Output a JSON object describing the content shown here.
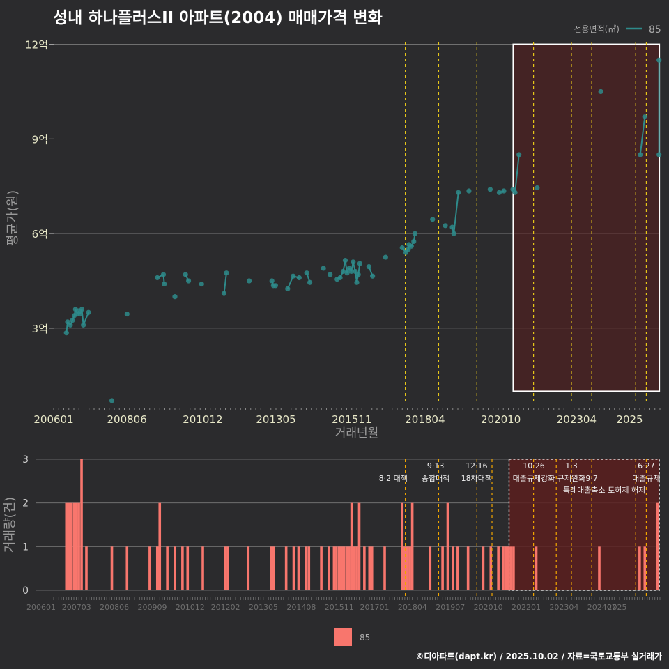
{
  "title": "성내 하나플러스II 아파트(2004) 매매가격 변화",
  "footer": "©디아파트(dapt.kr) / 2025.10.02 / 자료=국토교통부 실거래가",
  "colors": {
    "background": "#2b2b2d",
    "line": "#2e8b8b",
    "bar": "#f8766d",
    "policy_line": "#e6c619",
    "highlight_fill": "#5a1e1e",
    "grid": "#7a7a7a"
  },
  "chart_data": [
    {
      "type": "line",
      "title": "성내 하나플러스II 아파트(2004) 매매가격 변화",
      "xlabel": "거래년월",
      "ylabel": "평균가(원)",
      "x_ticks": [
        "200601",
        "200806",
        "201012",
        "201305",
        "201511",
        "201804",
        "202010",
        "202304",
        "2025"
      ],
      "y_ticks": [
        {
          "value": 30000,
          "label": "3억"
        },
        {
          "value": 60000,
          "label": "6억"
        },
        {
          "value": 90000,
          "label": "9억"
        },
        {
          "value": 120000,
          "label": "12억"
        }
      ],
      "ylim": [
        7000,
        123000
      ],
      "legend_title": "전용면적(㎡)",
      "legend_entries": [
        "85"
      ],
      "series": [
        {
          "name": "85",
          "unit": "만원",
          "points": [
            {
              "t": 2006.42,
              "v": 28500
            },
            {
              "t": 2006.46,
              "v": 32000
            },
            {
              "t": 2006.55,
              "v": 31000
            },
            {
              "t": 2006.62,
              "v": 32500
            },
            {
              "t": 2006.68,
              "v": 34000
            },
            {
              "t": 2006.72,
              "v": 36000
            },
            {
              "t": 2006.78,
              "v": 34500
            },
            {
              "t": 2006.83,
              "v": 35500
            },
            {
              "t": 2006.88,
              "v": 34500
            },
            {
              "t": 2006.93,
              "v": 36000
            },
            {
              "t": 2006.98,
              "v": 31000
            },
            {
              "t": 2007.15,
              "v": 35000
            },
            {
              "t": 2007.92,
              "v": 7000
            },
            {
              "t": 2008.42,
              "v": 34500
            },
            {
              "t": 2009.42,
              "v": 46000
            },
            {
              "t": 2009.62,
              "v": 47000
            },
            {
              "t": 2009.65,
              "v": 44000
            },
            {
              "t": 2010.0,
              "v": 40000
            },
            {
              "t": 2010.35,
              "v": 47000
            },
            {
              "t": 2010.45,
              "v": 45000
            },
            {
              "t": 2010.88,
              "v": 44000
            },
            {
              "t": 2011.62,
              "v": 41000
            },
            {
              "t": 2011.7,
              "v": 47500
            },
            {
              "t": 2012.45,
              "v": 45000
            },
            {
              "t": 2013.2,
              "v": 45000
            },
            {
              "t": 2013.25,
              "v": 43500
            },
            {
              "t": 2013.32,
              "v": 43500
            },
            {
              "t": 2013.72,
              "v": 42500
            },
            {
              "t": 2013.9,
              "v": 46500
            },
            {
              "t": 2014.1,
              "v": 46000
            },
            {
              "t": 2014.35,
              "v": 47500
            },
            {
              "t": 2014.45,
              "v": 44500
            },
            {
              "t": 2014.9,
              "v": 49000
            },
            {
              "t": 2015.12,
              "v": 47000
            },
            {
              "t": 2015.35,
              "v": 45500
            },
            {
              "t": 2015.45,
              "v": 46000
            },
            {
              "t": 2015.55,
              "v": 48000
            },
            {
              "t": 2015.62,
              "v": 51500
            },
            {
              "t": 2015.68,
              "v": 47500
            },
            {
              "t": 2015.75,
              "v": 49000
            },
            {
              "t": 2015.82,
              "v": 48000
            },
            {
              "t": 2015.88,
              "v": 51000
            },
            {
              "t": 2015.95,
              "v": 48000
            },
            {
              "t": 2016.0,
              "v": 44500
            },
            {
              "t": 2016.05,
              "v": 47000
            },
            {
              "t": 2016.1,
              "v": 50500
            },
            {
              "t": 2016.4,
              "v": 49500
            },
            {
              "t": 2016.52,
              "v": 46500
            },
            {
              "t": 2016.95,
              "v": 52500
            },
            {
              "t": 2017.5,
              "v": 55500
            },
            {
              "t": 2017.62,
              "v": 54000
            },
            {
              "t": 2017.7,
              "v": 55000
            },
            {
              "t": 2017.72,
              "v": 56500
            },
            {
              "t": 2017.8,
              "v": 56000
            },
            {
              "t": 2017.88,
              "v": 57500
            },
            {
              "t": 2017.92,
              "v": 60000
            },
            {
              "t": 2018.5,
              "v": 64500
            },
            {
              "t": 2018.92,
              "v": 62500
            },
            {
              "t": 2019.15,
              "v": 62000
            },
            {
              "t": 2019.2,
              "v": 60000
            },
            {
              "t": 2019.35,
              "v": 73000
            },
            {
              "t": 2019.7,
              "v": 73500
            },
            {
              "t": 2020.4,
              "v": 74000
            },
            {
              "t": 2020.7,
              "v": 73000
            },
            {
              "t": 2020.85,
              "v": 73500
            },
            {
              "t": 2021.15,
              "v": 74000
            },
            {
              "t": 2021.22,
              "v": 73000
            },
            {
              "t": 2021.35,
              "v": 85000
            },
            {
              "t": 2021.95,
              "v": 74500
            },
            {
              "t": 2024.05,
              "v": 105000
            },
            {
              "t": 2025.35,
              "v": 85000
            },
            {
              "t": 2025.5,
              "v": 97000
            },
            {
              "t": 2025.97,
              "v": 85000
            },
            {
              "t": 2025.97,
              "v": 115000
            }
          ]
        }
      ],
      "policy_lines": [
        2017.6,
        2018.7,
        2019.96,
        2021.83,
        2023.08,
        2023.75,
        2025.2,
        2025.55
      ],
      "highlight_range": {
        "x": [
          2021.16,
          2025.98
        ],
        "y": [
          10000,
          120000
        ]
      }
    },
    {
      "type": "bar",
      "xlabel": "",
      "ylabel": "거래량(건)",
      "x_ticks": [
        "200601",
        "200703",
        "200806",
        "200909",
        "201012",
        "201202",
        "201305",
        "201408",
        "201511",
        "201701",
        "201804",
        "201907",
        "202010",
        "202201",
        "202304",
        "202407",
        "2025"
      ],
      "y_ticks": [
        "0",
        "1",
        "2",
        "3"
      ],
      "ylim": [
        0,
        3
      ],
      "legend_entries": [
        "85"
      ],
      "bars": [
        {
          "t": 2006.42,
          "v": 2
        },
        {
          "t": 2006.5,
          "v": 2
        },
        {
          "t": 2006.58,
          "v": 2
        },
        {
          "t": 2006.67,
          "v": 2
        },
        {
          "t": 2006.75,
          "v": 2
        },
        {
          "t": 2006.83,
          "v": 2
        },
        {
          "t": 2006.92,
          "v": 3
        },
        {
          "t": 2007.08,
          "v": 1
        },
        {
          "t": 2007.92,
          "v": 1
        },
        {
          "t": 2008.42,
          "v": 1
        },
        {
          "t": 2009.17,
          "v": 1
        },
        {
          "t": 2009.42,
          "v": 1
        },
        {
          "t": 2009.5,
          "v": 2
        },
        {
          "t": 2009.75,
          "v": 1
        },
        {
          "t": 2010.0,
          "v": 1
        },
        {
          "t": 2010.25,
          "v": 1
        },
        {
          "t": 2010.42,
          "v": 1
        },
        {
          "t": 2010.92,
          "v": 1
        },
        {
          "t": 2011.67,
          "v": 1
        },
        {
          "t": 2011.75,
          "v": 1
        },
        {
          "t": 2012.42,
          "v": 1
        },
        {
          "t": 2013.17,
          "v": 1
        },
        {
          "t": 2013.25,
          "v": 1
        },
        {
          "t": 2013.67,
          "v": 1
        },
        {
          "t": 2013.92,
          "v": 1
        },
        {
          "t": 2014.08,
          "v": 1
        },
        {
          "t": 2014.33,
          "v": 1
        },
        {
          "t": 2014.42,
          "v": 1
        },
        {
          "t": 2014.83,
          "v": 1
        },
        {
          "t": 2015.08,
          "v": 1
        },
        {
          "t": 2015.25,
          "v": 1
        },
        {
          "t": 2015.33,
          "v": 1
        },
        {
          "t": 2015.42,
          "v": 1
        },
        {
          "t": 2015.5,
          "v": 1
        },
        {
          "t": 2015.58,
          "v": 1
        },
        {
          "t": 2015.67,
          "v": 1
        },
        {
          "t": 2015.75,
          "v": 1
        },
        {
          "t": 2015.83,
          "v": 2
        },
        {
          "t": 2015.92,
          "v": 1
        },
        {
          "t": 2016.0,
          "v": 1
        },
        {
          "t": 2016.08,
          "v": 2
        },
        {
          "t": 2016.25,
          "v": 1
        },
        {
          "t": 2016.42,
          "v": 1
        },
        {
          "t": 2016.5,
          "v": 1
        },
        {
          "t": 2016.92,
          "v": 1
        },
        {
          "t": 2017.5,
          "v": 2
        },
        {
          "t": 2017.58,
          "v": 1
        },
        {
          "t": 2017.67,
          "v": 1
        },
        {
          "t": 2017.75,
          "v": 1
        },
        {
          "t": 2017.83,
          "v": 2
        },
        {
          "t": 2018.42,
          "v": 1
        },
        {
          "t": 2018.83,
          "v": 1
        },
        {
          "t": 2019.0,
          "v": 2
        },
        {
          "t": 2019.17,
          "v": 1
        },
        {
          "t": 2019.33,
          "v": 1
        },
        {
          "t": 2019.67,
          "v": 1
        },
        {
          "t": 2020.17,
          "v": 1
        },
        {
          "t": 2020.42,
          "v": 1
        },
        {
          "t": 2020.67,
          "v": 1
        },
        {
          "t": 2020.83,
          "v": 1
        },
        {
          "t": 2020.92,
          "v": 1
        },
        {
          "t": 2021.0,
          "v": 1
        },
        {
          "t": 2021.08,
          "v": 1
        },
        {
          "t": 2021.17,
          "v": 1
        },
        {
          "t": 2021.92,
          "v": 1
        },
        {
          "t": 2024.0,
          "v": 1
        },
        {
          "t": 2025.33,
          "v": 1
        },
        {
          "t": 2025.5,
          "v": 1
        },
        {
          "t": 2025.92,
          "v": 2
        }
      ],
      "policy_lines": [
        2017.6,
        2018.7,
        2019.96,
        2020.46,
        2021.83,
        2022.58,
        2023.08,
        2023.75,
        2025.2,
        2025.55
      ],
      "highlight_range": {
        "x": [
          2021.16,
          2025.98
        ],
        "y": [
          0,
          3
        ]
      },
      "annotations": [
        {
          "text": "8·2 대책",
          "t": 2017.2,
          "row": 0
        },
        {
          "text": "9·13",
          "t": 2018.6,
          "row": -1
        },
        {
          "text": "종합대책",
          "t": 2018.6,
          "row": 0
        },
        {
          "text": "12·16",
          "t": 2019.95,
          "row": -1
        },
        {
          "text": "18차대책",
          "t": 2019.95,
          "row": 0
        },
        {
          "text": "10·26",
          "t": 2021.84,
          "row": -1
        },
        {
          "text": "대출규제강화",
          "t": 2021.84,
          "row": 0
        },
        {
          "text": "1·3",
          "t": 2023.08,
          "row": -1
        },
        {
          "text": "규제완화",
          "t": 2023.08,
          "row": 0
        },
        {
          "text": "9·7",
          "t": 2023.75,
          "row": 0
        },
        {
          "text": "특례대출축소",
          "t": 2023.5,
          "row": 1
        },
        {
          "text": "토허제 해제",
          "t": 2024.9,
          "row": 1
        },
        {
          "text": "6·27",
          "t": 2025.55,
          "row": -1
        },
        {
          "text": "대출규제",
          "t": 2025.55,
          "row": 0
        }
      ]
    }
  ]
}
